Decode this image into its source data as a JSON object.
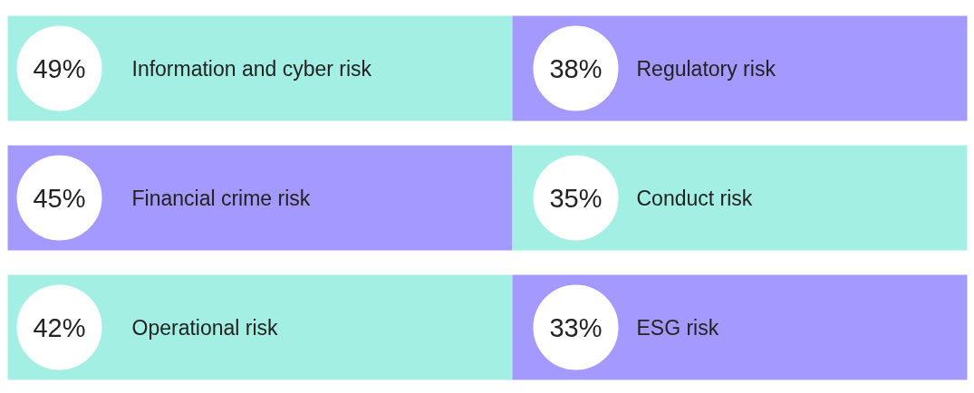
{
  "chart_data": {
    "type": "other",
    "categories": [
      "Information and cyber risk",
      "Regulatory risk",
      "Financial crime risk",
      "Conduct risk",
      "Operational risk",
      "ESG risk"
    ],
    "values": [
      49,
      38,
      45,
      35,
      42,
      33
    ],
    "value_labels": [
      "49%",
      "38%",
      "45%",
      "35%",
      "42%",
      "33%"
    ],
    "colors": [
      "#a3efe3",
      "#a499ff",
      "#a499ff",
      "#a3efe3",
      "#a3efe3",
      "#a499ff"
    ]
  }
}
